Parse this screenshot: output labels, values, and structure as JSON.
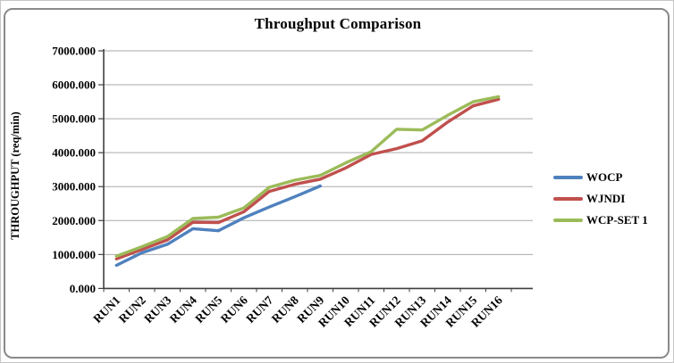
{
  "chart_data": {
    "type": "line",
    "title": "Throughput Comparison",
    "ylabel": "THROUGHPUT (req/min)",
    "xlabel": "",
    "categories": [
      "RUN1",
      "RUN2",
      "RUN3",
      "RUN4",
      "RUN5",
      "RUN6",
      "RUN7",
      "RUN8",
      "RUN9",
      "RUN10",
      "RUN11",
      "RUN12",
      "RUN13",
      "RUN14",
      "RUN15",
      "RUN16"
    ],
    "series": [
      {
        "name": "WOCP",
        "color": "#4F81BD",
        "values": [
          680,
          1050,
          1300,
          1760,
          1700,
          2080,
          2400,
          2700,
          3020
        ]
      },
      {
        "name": "WJNDI",
        "color": "#C0504D",
        "values": [
          870,
          1150,
          1430,
          1950,
          1940,
          2260,
          2860,
          3070,
          3220,
          3550,
          3950,
          4120,
          4350,
          4900,
          5380,
          5570
        ]
      },
      {
        "name": "WCP-SET 1",
        "color": "#9BBB59",
        "values": [
          950,
          1230,
          1530,
          2060,
          2100,
          2370,
          2980,
          3190,
          3330,
          3700,
          4030,
          4690,
          4670,
          5100,
          5500,
          5650
        ]
      }
    ],
    "ylim": [
      0,
      7000
    ],
    "ytick_step": 1000,
    "ytick_labels": [
      "0.000",
      "1000.000",
      "2000.000",
      "3000.000",
      "4000.000",
      "5000.000",
      "6000.000",
      "7000.000"
    ],
    "grid": true,
    "legend_position": "right",
    "colors": {
      "axis": "#3f3f3f",
      "gridline": "#aaaaaa",
      "tick": "#3f3f3f"
    }
  }
}
